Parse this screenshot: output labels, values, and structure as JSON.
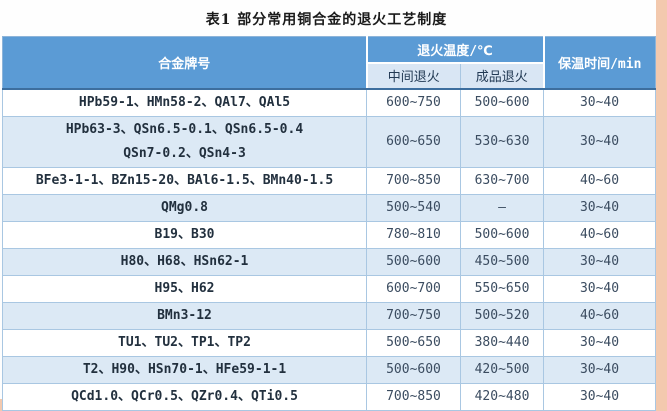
{
  "page": {
    "page_bg": "#FEFEFE",
    "edge_band": "#F3C9AE"
  },
  "title": "表1 部分常用铜合金的退火工艺制度",
  "table": {
    "colors": {
      "header_bg": "#5B9BD5",
      "header_text": "#FFFFFF",
      "subheader_bg": "#D9E6F4",
      "stripe_bg": "#DCE9F5",
      "grid_line": "#A9C7E2",
      "header_underline": "#3D6E9E",
      "body_text": "#3B4C60",
      "alloy_text": "#22303E"
    },
    "headers": {
      "alloy": "合金牌号",
      "temperature_group": "退火温度/℃",
      "intermediate": "中间退火",
      "finished": "成品退火",
      "holding_time": "保温时间/min"
    },
    "rows": [
      {
        "alloy": "HPb59-1、HMn58-2、QAl7、QAl5",
        "intermediate": "600~750",
        "finished": "500~600",
        "holding": "30~40"
      },
      {
        "alloy": [
          "HPb63-3、QSn6.5-0.1、QSn6.5-0.4",
          "QSn7-0.2、QSn4-3"
        ],
        "intermediate": "600~650",
        "finished": "530~630",
        "holding": "30~40"
      },
      {
        "alloy": "BFe3-1-1、BZn15-20、BAl6-1.5、BMn40-1.5",
        "intermediate": "700~850",
        "finished": "630~700",
        "holding": "40~60"
      },
      {
        "alloy": "QMg0.8",
        "intermediate": "500~540",
        "finished": "–",
        "holding": "30~40"
      },
      {
        "alloy": "B19、B30",
        "intermediate": "780~810",
        "finished": "500~600",
        "holding": "40~60"
      },
      {
        "alloy": "H80、H68、HSn62-1",
        "intermediate": "500~600",
        "finished": "450~500",
        "holding": "30~40"
      },
      {
        "alloy": "H95、H62",
        "intermediate": "600~700",
        "finished": "550~650",
        "holding": "30~40"
      },
      {
        "alloy": "BMn3-12",
        "intermediate": "700~750",
        "finished": "500~520",
        "holding": "40~60"
      },
      {
        "alloy": "TU1、TU2、TP1、TP2",
        "intermediate": "500~650",
        "finished": "380~440",
        "holding": "30~40"
      },
      {
        "alloy": "T2、H90、HSn70-1、HFe59-1-1",
        "intermediate": "500~600",
        "finished": "420~500",
        "holding": "30~40"
      },
      {
        "alloy": "QCd1.0、QCr0.5、QZr0.4、QTi0.5",
        "intermediate": "700~850",
        "finished": "420~480",
        "holding": "30~40"
      }
    ]
  }
}
